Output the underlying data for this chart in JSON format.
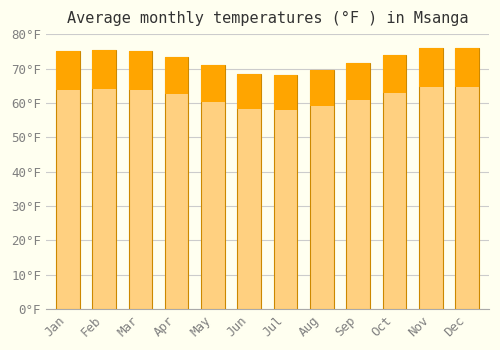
{
  "title": "Average monthly temperatures (°F ) in Msanga",
  "months": [
    "Jan",
    "Feb",
    "Mar",
    "Apr",
    "May",
    "Jun",
    "Jul",
    "Aug",
    "Sep",
    "Oct",
    "Nov",
    "Dec"
  ],
  "values": [
    75.0,
    75.5,
    75.0,
    73.5,
    71.0,
    68.5,
    68.0,
    69.5,
    71.5,
    74.0,
    76.0,
    76.0
  ],
  "bar_color_top": "#FFA500",
  "bar_color_bottom": "#FFD080",
  "bar_edge_color": "#CC8800",
  "background_color": "#FFFFF0",
  "grid_color": "#CCCCCC",
  "ylim": [
    0,
    80
  ],
  "yticks": [
    0,
    10,
    20,
    30,
    40,
    50,
    60,
    70,
    80
  ],
  "ytick_labels": [
    "0°F",
    "10°F",
    "20°F",
    "30°F",
    "40°F",
    "50°F",
    "60°F",
    "70°F",
    "80°F"
  ],
  "title_fontsize": 11,
  "tick_fontsize": 9,
  "font_family": "monospace"
}
